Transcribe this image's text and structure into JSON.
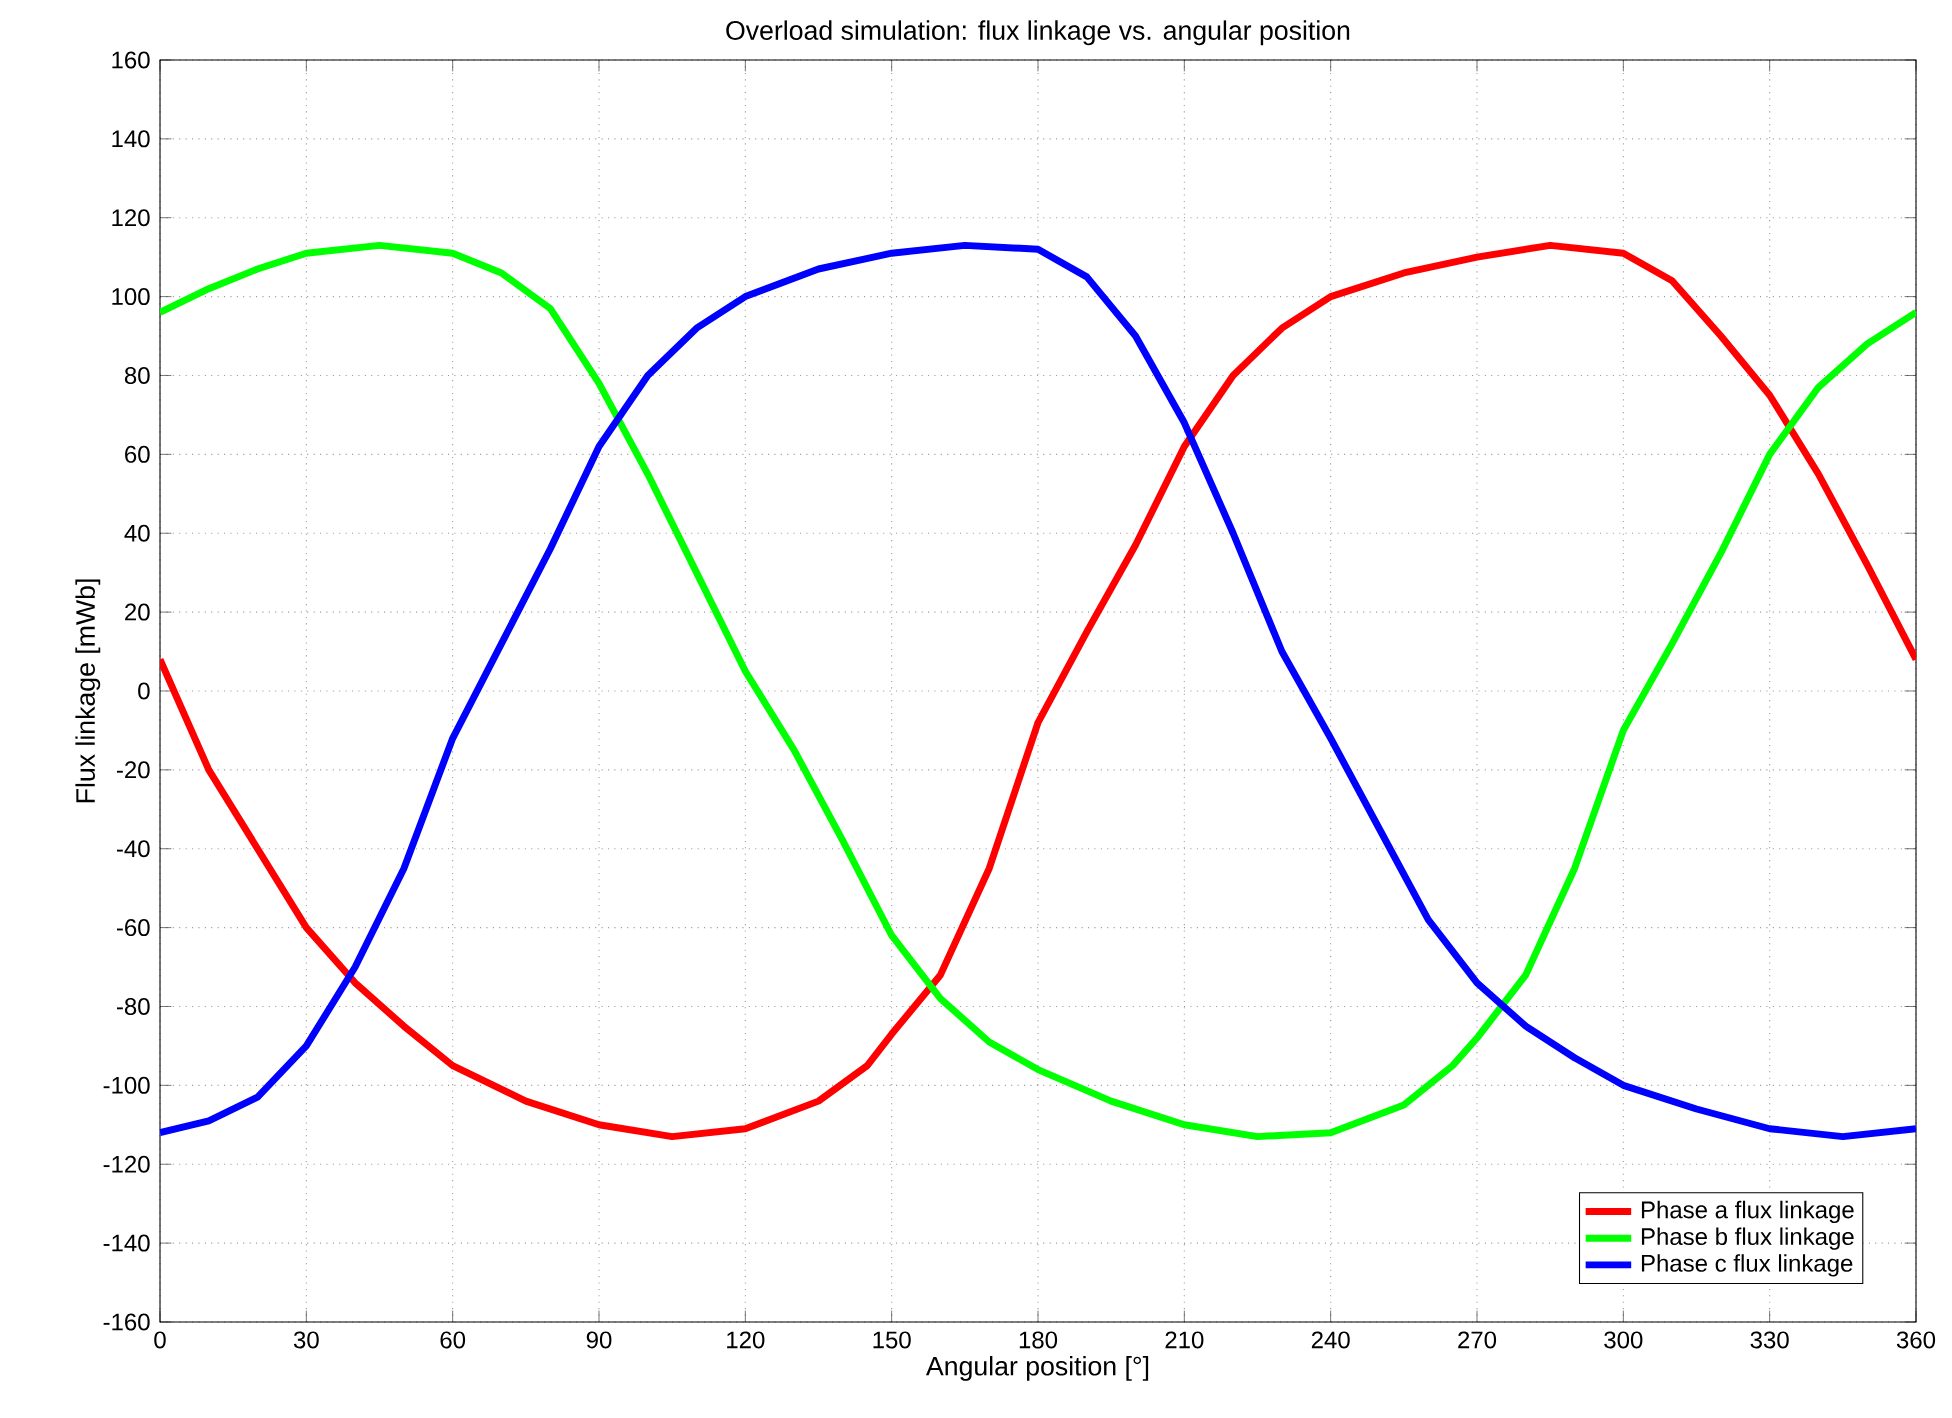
{
  "chart_data": {
    "type": "line",
    "title": "Overload simulation: flux linkage vs. angular position",
    "xlabel": "Angular position [°]",
    "ylabel": "Flux linkage [mWb]",
    "xlim": [
      0,
      360
    ],
    "ylim": [
      -160,
      160
    ],
    "xticks": [
      0,
      30,
      60,
      90,
      120,
      150,
      180,
      210,
      240,
      270,
      300,
      330,
      360
    ],
    "yticks": [
      -160,
      -140,
      -120,
      -100,
      -80,
      -60,
      -40,
      -20,
      0,
      20,
      40,
      60,
      80,
      100,
      120,
      140,
      160
    ],
    "grid": true,
    "legend": "bottom right",
    "line_style": "solid",
    "marker": "none",
    "series": [
      {
        "name": "Phase a flux linkage",
        "color": "#ff0000",
        "x": [
          0,
          10,
          20,
          30,
          40,
          50,
          60,
          75,
          90,
          105,
          120,
          135,
          145,
          150,
          160,
          170,
          180,
          190,
          200,
          210,
          220,
          230,
          240,
          255,
          270,
          285,
          300,
          310,
          320,
          330,
          340,
          350,
          360
        ],
        "values": [
          8,
          -20,
          -40,
          -60,
          -74,
          -85,
          -95,
          -104,
          -110,
          -113,
          -111,
          -104,
          -95,
          -87,
          -72,
          -45,
          -8,
          15,
          37,
          62,
          80,
          92,
          100,
          106,
          110,
          113,
          111,
          104,
          90,
          75,
          55,
          32,
          8
        ]
      },
      {
        "name": "Phase b flux linkage",
        "color": "#00ff00",
        "x": [
          0,
          10,
          20,
          30,
          45,
          60,
          70,
          80,
          90,
          100,
          110,
          120,
          130,
          140,
          150,
          160,
          170,
          180,
          195,
          210,
          225,
          240,
          255,
          265,
          270,
          280,
          290,
          300,
          310,
          320,
          330,
          340,
          350,
          360
        ],
        "values": [
          96,
          102,
          107,
          111,
          113,
          111,
          106,
          97,
          78,
          55,
          30,
          5,
          -15,
          -38,
          -62,
          -78,
          -89,
          -96,
          -104,
          -110,
          -113,
          -112,
          -105,
          -95,
          -88,
          -72,
          -45,
          -10,
          12,
          35,
          60,
          77,
          88,
          96
        ]
      },
      {
        "name": "Phase c flux linkage",
        "color": "#0000ff",
        "x": [
          0,
          10,
          20,
          30,
          40,
          50,
          60,
          70,
          80,
          90,
          100,
          110,
          120,
          135,
          150,
          165,
          180,
          190,
          200,
          210,
          220,
          230,
          240,
          250,
          260,
          270,
          280,
          290,
          300,
          315,
          330,
          345,
          360
        ],
        "values": [
          -112,
          -109,
          -103,
          -90,
          -70,
          -45,
          -12,
          12,
          36,
          62,
          80,
          92,
          100,
          107,
          111,
          113,
          112,
          105,
          90,
          68,
          40,
          10,
          -12,
          -35,
          -58,
          -74,
          -85,
          -93,
          -100,
          -106,
          -111,
          -113,
          -111
        ]
      }
    ]
  }
}
